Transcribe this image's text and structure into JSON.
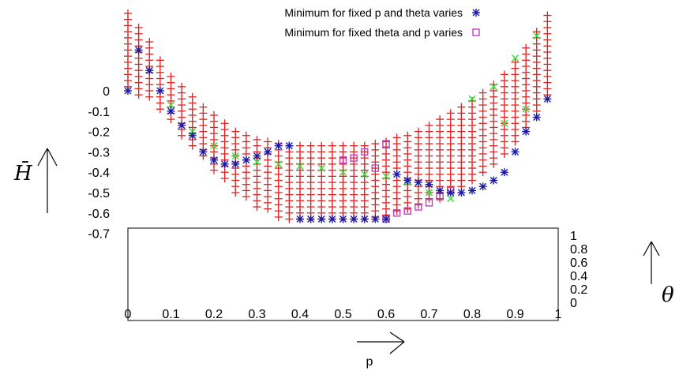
{
  "chart_data": {
    "type": "scatter",
    "xlabel": "p",
    "ylabel": "H̄",
    "y2label": "θ",
    "xlim": [
      0,
      1
    ],
    "ylim": [
      -0.7,
      0
    ],
    "y2lim": [
      0,
      1
    ],
    "x_ticks": [
      "0",
      "0.1",
      "0.2",
      "0.3",
      "0.4",
      "0.5",
      "0.6",
      "0.7",
      "0.8",
      "0.9",
      "1"
    ],
    "y_ticks": [
      "0",
      "-0.1",
      "-0.2",
      "-0.3",
      "-0.4",
      "-0.5",
      "-0.6",
      "-0.7"
    ],
    "y2_ticks": [
      "1",
      "0.8",
      "0.6",
      "0.4",
      "0.2",
      "0"
    ],
    "legend_position": "top-center",
    "series": [
      {
        "name": "Minimum for fixed p and theta varies",
        "marker": "star",
        "color": "#1a1aa6",
        "x": [
          0,
          0.025,
          0.05,
          0.075,
          0.1,
          0.125,
          0.15,
          0.175,
          0.2,
          0.225,
          0.25,
          0.275,
          0.3,
          0.325,
          0.35,
          0.375,
          0.4,
          0.425,
          0.45,
          0.475,
          0.5,
          0.525,
          0.55,
          0.575,
          0.6,
          0.625,
          0.65,
          0.675,
          0.7,
          0.725,
          0.75,
          0.775,
          0.8,
          0.825,
          0.85,
          0.875,
          0.9,
          0.925,
          0.95,
          0.975
        ],
        "y": [
          0.0,
          0.2,
          0.1,
          0.0,
          -0.1,
          -0.17,
          -0.22,
          -0.3,
          -0.34,
          -0.36,
          -0.36,
          -0.34,
          -0.32,
          -0.3,
          -0.27,
          -0.27,
          -0.63,
          -0.63,
          -0.63,
          -0.63,
          -0.63,
          -0.63,
          -0.63,
          -0.63,
          -0.63,
          -0.41,
          -0.44,
          -0.45,
          -0.46,
          -0.49,
          -0.5,
          -0.5,
          -0.49,
          -0.47,
          -0.44,
          -0.4,
          -0.3,
          -0.2,
          -0.13,
          -0.04
        ]
      },
      {
        "name": "Minimum for fixed theta and p varies",
        "marker": "square",
        "color": "#c040c0",
        "x": [
          0.5,
          0.525,
          0.55,
          0.575,
          0.6,
          0.6,
          0.625,
          0.65,
          0.675,
          0.7,
          0.725,
          0.75
        ],
        "y": [
          -0.34,
          -0.33,
          -0.3,
          -0.38,
          -0.26,
          -0.63,
          -0.6,
          -0.59,
          -0.57,
          -0.55,
          -0.52,
          -0.49
        ]
      },
      {
        "marker": "cross",
        "color": "#44dd44",
        "x": [
          0.05,
          0.1,
          0.15,
          0.2,
          0.25,
          0.3,
          0.35,
          0.4,
          0.45,
          0.5,
          0.55,
          0.6,
          0.65,
          0.7,
          0.75,
          0.8,
          0.85,
          0.875,
          0.9,
          0.925,
          0.95
        ],
        "y": [
          0.1,
          -0.07,
          -0.2,
          -0.27,
          -0.32,
          -0.35,
          -0.36,
          -0.37,
          -0.38,
          -0.4,
          -0.41,
          -0.42,
          -0.45,
          -0.5,
          -0.53,
          -0.04,
          0.02,
          -0.16,
          0.16,
          -0.09,
          0.27
        ]
      },
      {
        "marker": "plus",
        "color": "#dd2222",
        "x": [
          0,
          0.025,
          0.05,
          0.075,
          0.1,
          0.125,
          0.15,
          0.175,
          0.2,
          0.225,
          0.25,
          0.275,
          0.3,
          0.325,
          0.35,
          0.375,
          0.4,
          0.425,
          0.45,
          0.475,
          0.5,
          0.525,
          0.55,
          0.575,
          0.6,
          0.625,
          0.65,
          0.675,
          0.7,
          0.725,
          0.75,
          0.775,
          0.8,
          0.825,
          0.85,
          0.875,
          0.9,
          0.925,
          0.95,
          0.975
        ],
        "y_top": [
          0.38,
          0.31,
          0.24,
          0.15,
          0.07,
          0.02,
          -0.03,
          -0.08,
          -0.12,
          -0.16,
          -0.2,
          -0.22,
          -0.24,
          -0.25,
          -0.26,
          -0.27,
          -0.27,
          -0.27,
          -0.27,
          -0.27,
          -0.27,
          -0.27,
          -0.27,
          -0.26,
          -0.25,
          -0.23,
          -0.22,
          -0.2,
          -0.17,
          -0.14,
          -0.11,
          -0.08,
          -0.05,
          -0.01,
          0.03,
          0.08,
          0.14,
          0.21,
          0.29,
          0.37
        ],
        "y_bottom": [
          0.0,
          -0.02,
          -0.05,
          -0.09,
          -0.15,
          -0.22,
          -0.28,
          -0.34,
          -0.4,
          -0.45,
          -0.5,
          -0.54,
          -0.57,
          -0.6,
          -0.62,
          -0.63,
          -0.63,
          -0.63,
          -0.63,
          -0.63,
          -0.63,
          -0.63,
          -0.63,
          -0.63,
          -0.63,
          -0.61,
          -0.59,
          -0.57,
          -0.55,
          -0.53,
          -0.5,
          -0.48,
          -0.45,
          -0.42,
          -0.38,
          -0.33,
          -0.27,
          -0.2,
          -0.12,
          -0.04
        ],
        "step": 0.03
      }
    ]
  }
}
